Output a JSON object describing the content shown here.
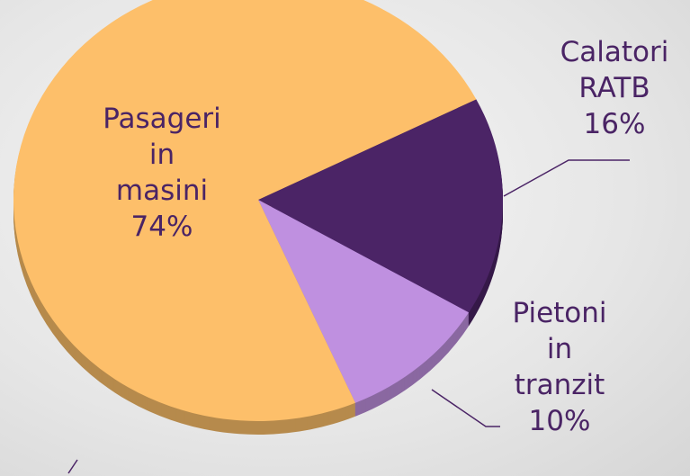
{
  "chart_data": {
    "type": "pie",
    "categories": [
      "Pasageri in masini",
      "Calatori RATB",
      "Pietoni in tranzit"
    ],
    "values": [
      74,
      16,
      10
    ],
    "value_labels": [
      "74%",
      "16%",
      "10%"
    ],
    "colors": [
      "#fdbf6a",
      "#4b2466",
      "#bf90e0"
    ]
  }
}
